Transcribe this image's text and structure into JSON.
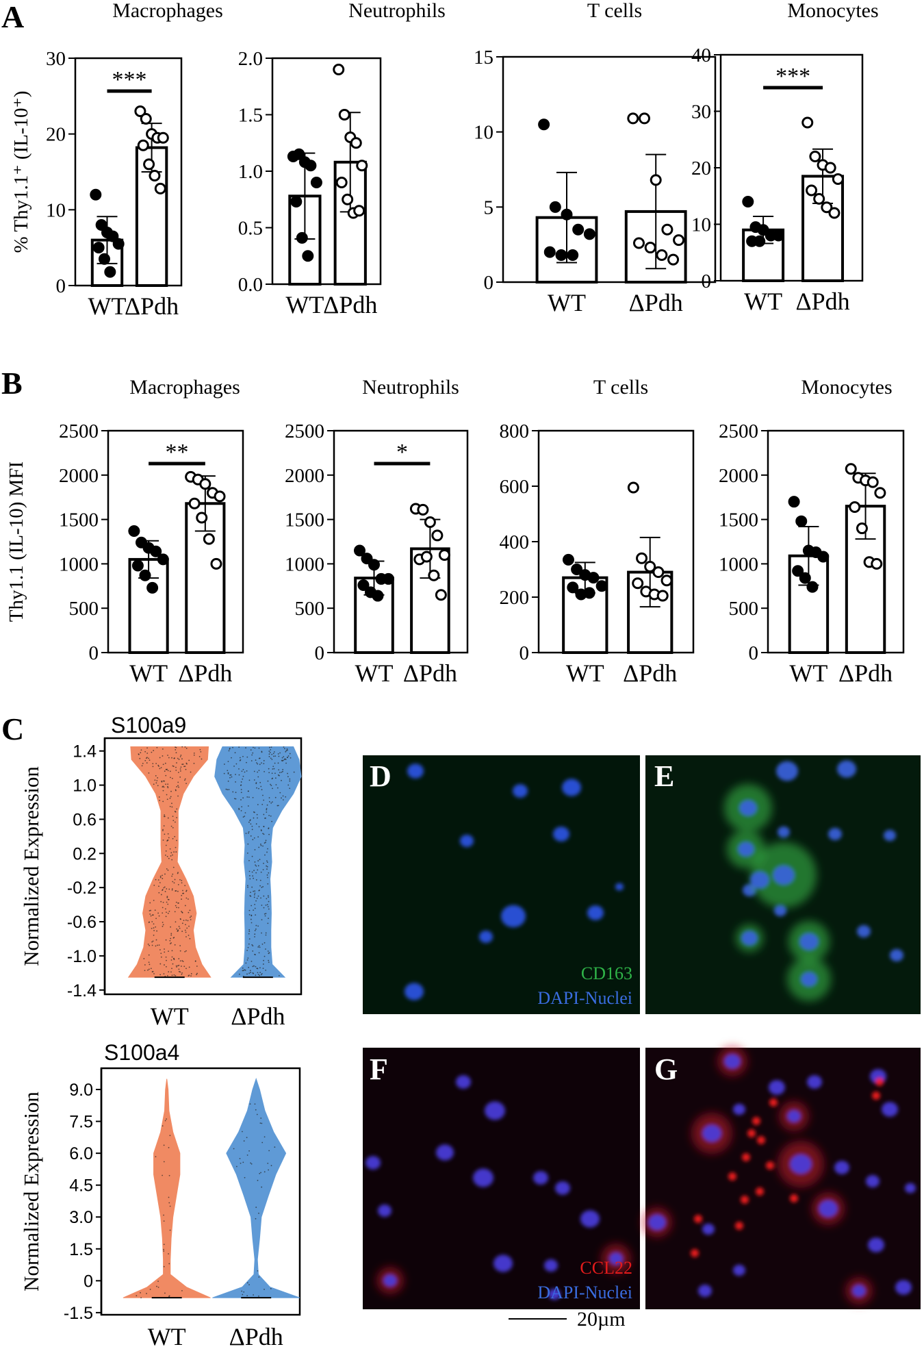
{
  "panel_letters": {
    "A": "A",
    "B": "B",
    "C": "C",
    "D": "D",
    "E": "E",
    "F": "F",
    "G": "G"
  },
  "scale_bar_label": "20µm",
  "colors": {
    "wt_violin": "#f08a63",
    "pdh_violin": "#5f9ad6",
    "cd163": "#2fb348",
    "dapi": "#2b5fd6",
    "ccl22": "#e21b1b"
  },
  "microscopy": {
    "D": {
      "label1": "CD163",
      "label2": "DAPI-Nuclei"
    },
    "E": {},
    "F": {
      "label1": "CCL22",
      "label2": "DAPI-Nuclei"
    },
    "G": {}
  },
  "chart_data": [
    {
      "panel": "A",
      "type": "bar",
      "title": "Macrophages",
      "ylabel": "% Thy1.1⁺ (IL-10⁺)",
      "categories": [
        "WT",
        "ΔPdh"
      ],
      "ylim": [
        0,
        30
      ],
      "yticks": [
        "0",
        "10",
        "20",
        "30"
      ],
      "values": [
        6.0,
        18.2
      ],
      "sd": [
        3.1,
        3.2
      ],
      "points": [
        [
          12.0,
          8.0,
          7.0,
          6.5,
          5.5,
          5.0,
          3.5,
          1.8
        ],
        [
          23.0,
          22.0,
          20.0,
          19.5,
          19.5,
          18.5,
          16.0,
          14.5,
          12.8
        ]
      ],
      "significance": "***"
    },
    {
      "panel": "A",
      "type": "bar",
      "title": "Neutrophils",
      "ylabel": "",
      "categories": [
        "WT",
        "ΔPdh"
      ],
      "ylim": [
        0,
        2.0
      ],
      "yticks": [
        "0.0",
        "0.5",
        "1.0",
        "1.5",
        "2.0"
      ],
      "values": [
        0.78,
        1.08
      ],
      "sd": [
        0.38,
        0.44
      ],
      "points": [
        [
          1.13,
          1.15,
          1.08,
          1.05,
          0.9,
          0.73,
          0.41,
          0.25
        ],
        [
          1.9,
          1.5,
          1.3,
          1.25,
          1.05,
          0.9,
          0.75,
          0.63,
          0.65
        ]
      ],
      "significance": ""
    },
    {
      "panel": "A",
      "type": "bar",
      "title": "T cells",
      "ylabel": "",
      "categories": [
        "WT",
        "ΔPdh"
      ],
      "ylim": [
        0,
        15
      ],
      "yticks": [
        "0",
        "5",
        "10",
        "15"
      ],
      "values": [
        4.3,
        4.7
      ],
      "sd": [
        3.0,
        3.8
      ],
      "points": [
        [
          10.5,
          5.0,
          4.5,
          3.5,
          3.2,
          2.0,
          1.8,
          1.8
        ],
        [
          10.9,
          10.9,
          6.8,
          3.5,
          2.8,
          2.6,
          2.3,
          1.8,
          1.5
        ]
      ],
      "significance": ""
    },
    {
      "panel": "A",
      "type": "bar",
      "title": "Monocytes",
      "ylabel": "",
      "categories": [
        "WT",
        "ΔPdh"
      ],
      "ylim": [
        0,
        40
      ],
      "yticks": [
        "0",
        "10",
        "20",
        "30",
        "40"
      ],
      "values": [
        9.0,
        18.5
      ],
      "sd": [
        2.4,
        4.8
      ],
      "points": [
        [
          14.0,
          9.5,
          9.0,
          8.0,
          8.0,
          7.0,
          7.0
        ],
        [
          28.0,
          22.0,
          20.5,
          20.0,
          18.0,
          16.0,
          14.5,
          13.0,
          12.0
        ]
      ],
      "significance": "***"
    },
    {
      "panel": "B",
      "type": "bar",
      "title": "Macrophages",
      "ylabel": "Thy1.1 (IL-10) MFI",
      "categories": [
        "WT",
        "ΔPdh"
      ],
      "ylim": [
        0,
        2500
      ],
      "yticks": [
        "0",
        "500",
        "1000",
        "1500",
        "2000",
        "2500"
      ],
      "values": [
        1050,
        1680
      ],
      "sd": [
        210,
        310
      ],
      "points": [
        [
          1370,
          1240,
          1180,
          1140,
          1050,
          980,
          870,
          730
        ],
        [
          1980,
          1950,
          1900,
          1800,
          1760,
          1680,
          1520,
          1280,
          1000
        ]
      ],
      "significance": "**"
    },
    {
      "panel": "B",
      "type": "bar",
      "title": "Neutrophils",
      "ylabel": "",
      "categories": [
        "WT",
        "ΔPdh"
      ],
      "ylim": [
        0,
        2500
      ],
      "yticks": [
        "0",
        "500",
        "1000",
        "1500",
        "2000",
        "2500"
      ],
      "values": [
        840,
        1170
      ],
      "sd": [
        190,
        330
      ],
      "points": [
        [
          1150,
          1060,
          990,
          830,
          830,
          760,
          680,
          640
        ],
        [
          1620,
          1610,
          1470,
          1320,
          1100,
          1050,
          1080,
          870,
          650
        ]
      ],
      "significance": "*"
    },
    {
      "panel": "B",
      "type": "bar",
      "title": "T cells",
      "ylabel": "",
      "categories": [
        "WT",
        "ΔPdh"
      ],
      "ylim": [
        0,
        800
      ],
      "yticks": [
        "0",
        "200",
        "400",
        "600",
        "800"
      ],
      "values": [
        270,
        290
      ],
      "sd": [
        55,
        125
      ],
      "points": [
        [
          335,
          300,
          280,
          270,
          240,
          235,
          210,
          215
        ],
        [
          595,
          340,
          310,
          290,
          260,
          250,
          220,
          210,
          205
        ]
      ],
      "significance": ""
    },
    {
      "panel": "B",
      "type": "bar",
      "title": "Monocytes",
      "ylabel": "",
      "categories": [
        "WT",
        "ΔPdh"
      ],
      "ylim": [
        0,
        2500
      ],
      "yticks": [
        "0",
        "500",
        "1000",
        "1500",
        "2000",
        "2500"
      ],
      "values": [
        1090,
        1650
      ],
      "sd": [
        330,
        370
      ],
      "points": [
        [
          1700,
          1480,
          1150,
          1130,
          1080,
          920,
          840,
          740
        ],
        [
          2070,
          1970,
          1940,
          1920,
          1800,
          1640,
          1400,
          1020,
          1000
        ]
      ],
      "significance": ""
    },
    {
      "panel": "C",
      "type": "violin",
      "title": "S100a9",
      "ylabel": "Normalized Expression",
      "categories": [
        "WT",
        "ΔPdh"
      ],
      "ylim": [
        -1.45,
        1.55
      ],
      "yticks": [
        "1.4",
        "1.0",
        "0.6",
        "0.2",
        "-0.2",
        "-0.6",
        "-1.0",
        "-1.4"
      ],
      "ytick_values": [
        1.4,
        1.0,
        0.6,
        0.2,
        -0.2,
        -0.6,
        -1.0,
        -1.4
      ],
      "density_y": [
        -1.25,
        -1.1,
        -0.9,
        -0.7,
        -0.5,
        -0.3,
        -0.1,
        0.1,
        0.3,
        0.5,
        0.7,
        0.9,
        1.1,
        1.3,
        1.45
      ],
      "density": [
        [
          0.95,
          0.75,
          0.6,
          0.55,
          0.62,
          0.55,
          0.38,
          0.18,
          0.2,
          0.2,
          0.2,
          0.32,
          0.55,
          0.88,
          0.9
        ],
        [
          0.62,
          0.33,
          0.3,
          0.3,
          0.31,
          0.3,
          0.28,
          0.32,
          0.3,
          0.34,
          0.55,
          0.82,
          1.0,
          0.95,
          0.82
        ]
      ]
    },
    {
      "panel": "C",
      "type": "violin",
      "title": "S100a4",
      "ylabel": "Normalized Expression",
      "categories": [
        "WT",
        "ΔPdh"
      ],
      "ylim": [
        -1.6,
        10.0
      ],
      "yticks": [
        "9.0",
        "7.5",
        "6.0",
        "4.5",
        "3.0",
        "1.5",
        "0",
        "-1.5"
      ],
      "ytick_values": [
        9.0,
        7.5,
        6.0,
        4.5,
        3.0,
        1.5,
        0,
        -1.5
      ],
      "density_y": [
        -0.8,
        -0.3,
        0.3,
        1.0,
        2.0,
        3.0,
        4.0,
        5.0,
        6.0,
        7.0,
        8.0,
        9.0,
        9.5
      ],
      "density": [
        [
          1.0,
          0.45,
          0.08,
          0.08,
          0.1,
          0.14,
          0.22,
          0.3,
          0.3,
          0.14,
          0.05,
          0.03,
          0.0
        ],
        [
          1.0,
          0.32,
          0.05,
          0.03,
          0.08,
          0.12,
          0.28,
          0.45,
          0.68,
          0.4,
          0.2,
          0.08,
          0.0
        ]
      ]
    }
  ]
}
